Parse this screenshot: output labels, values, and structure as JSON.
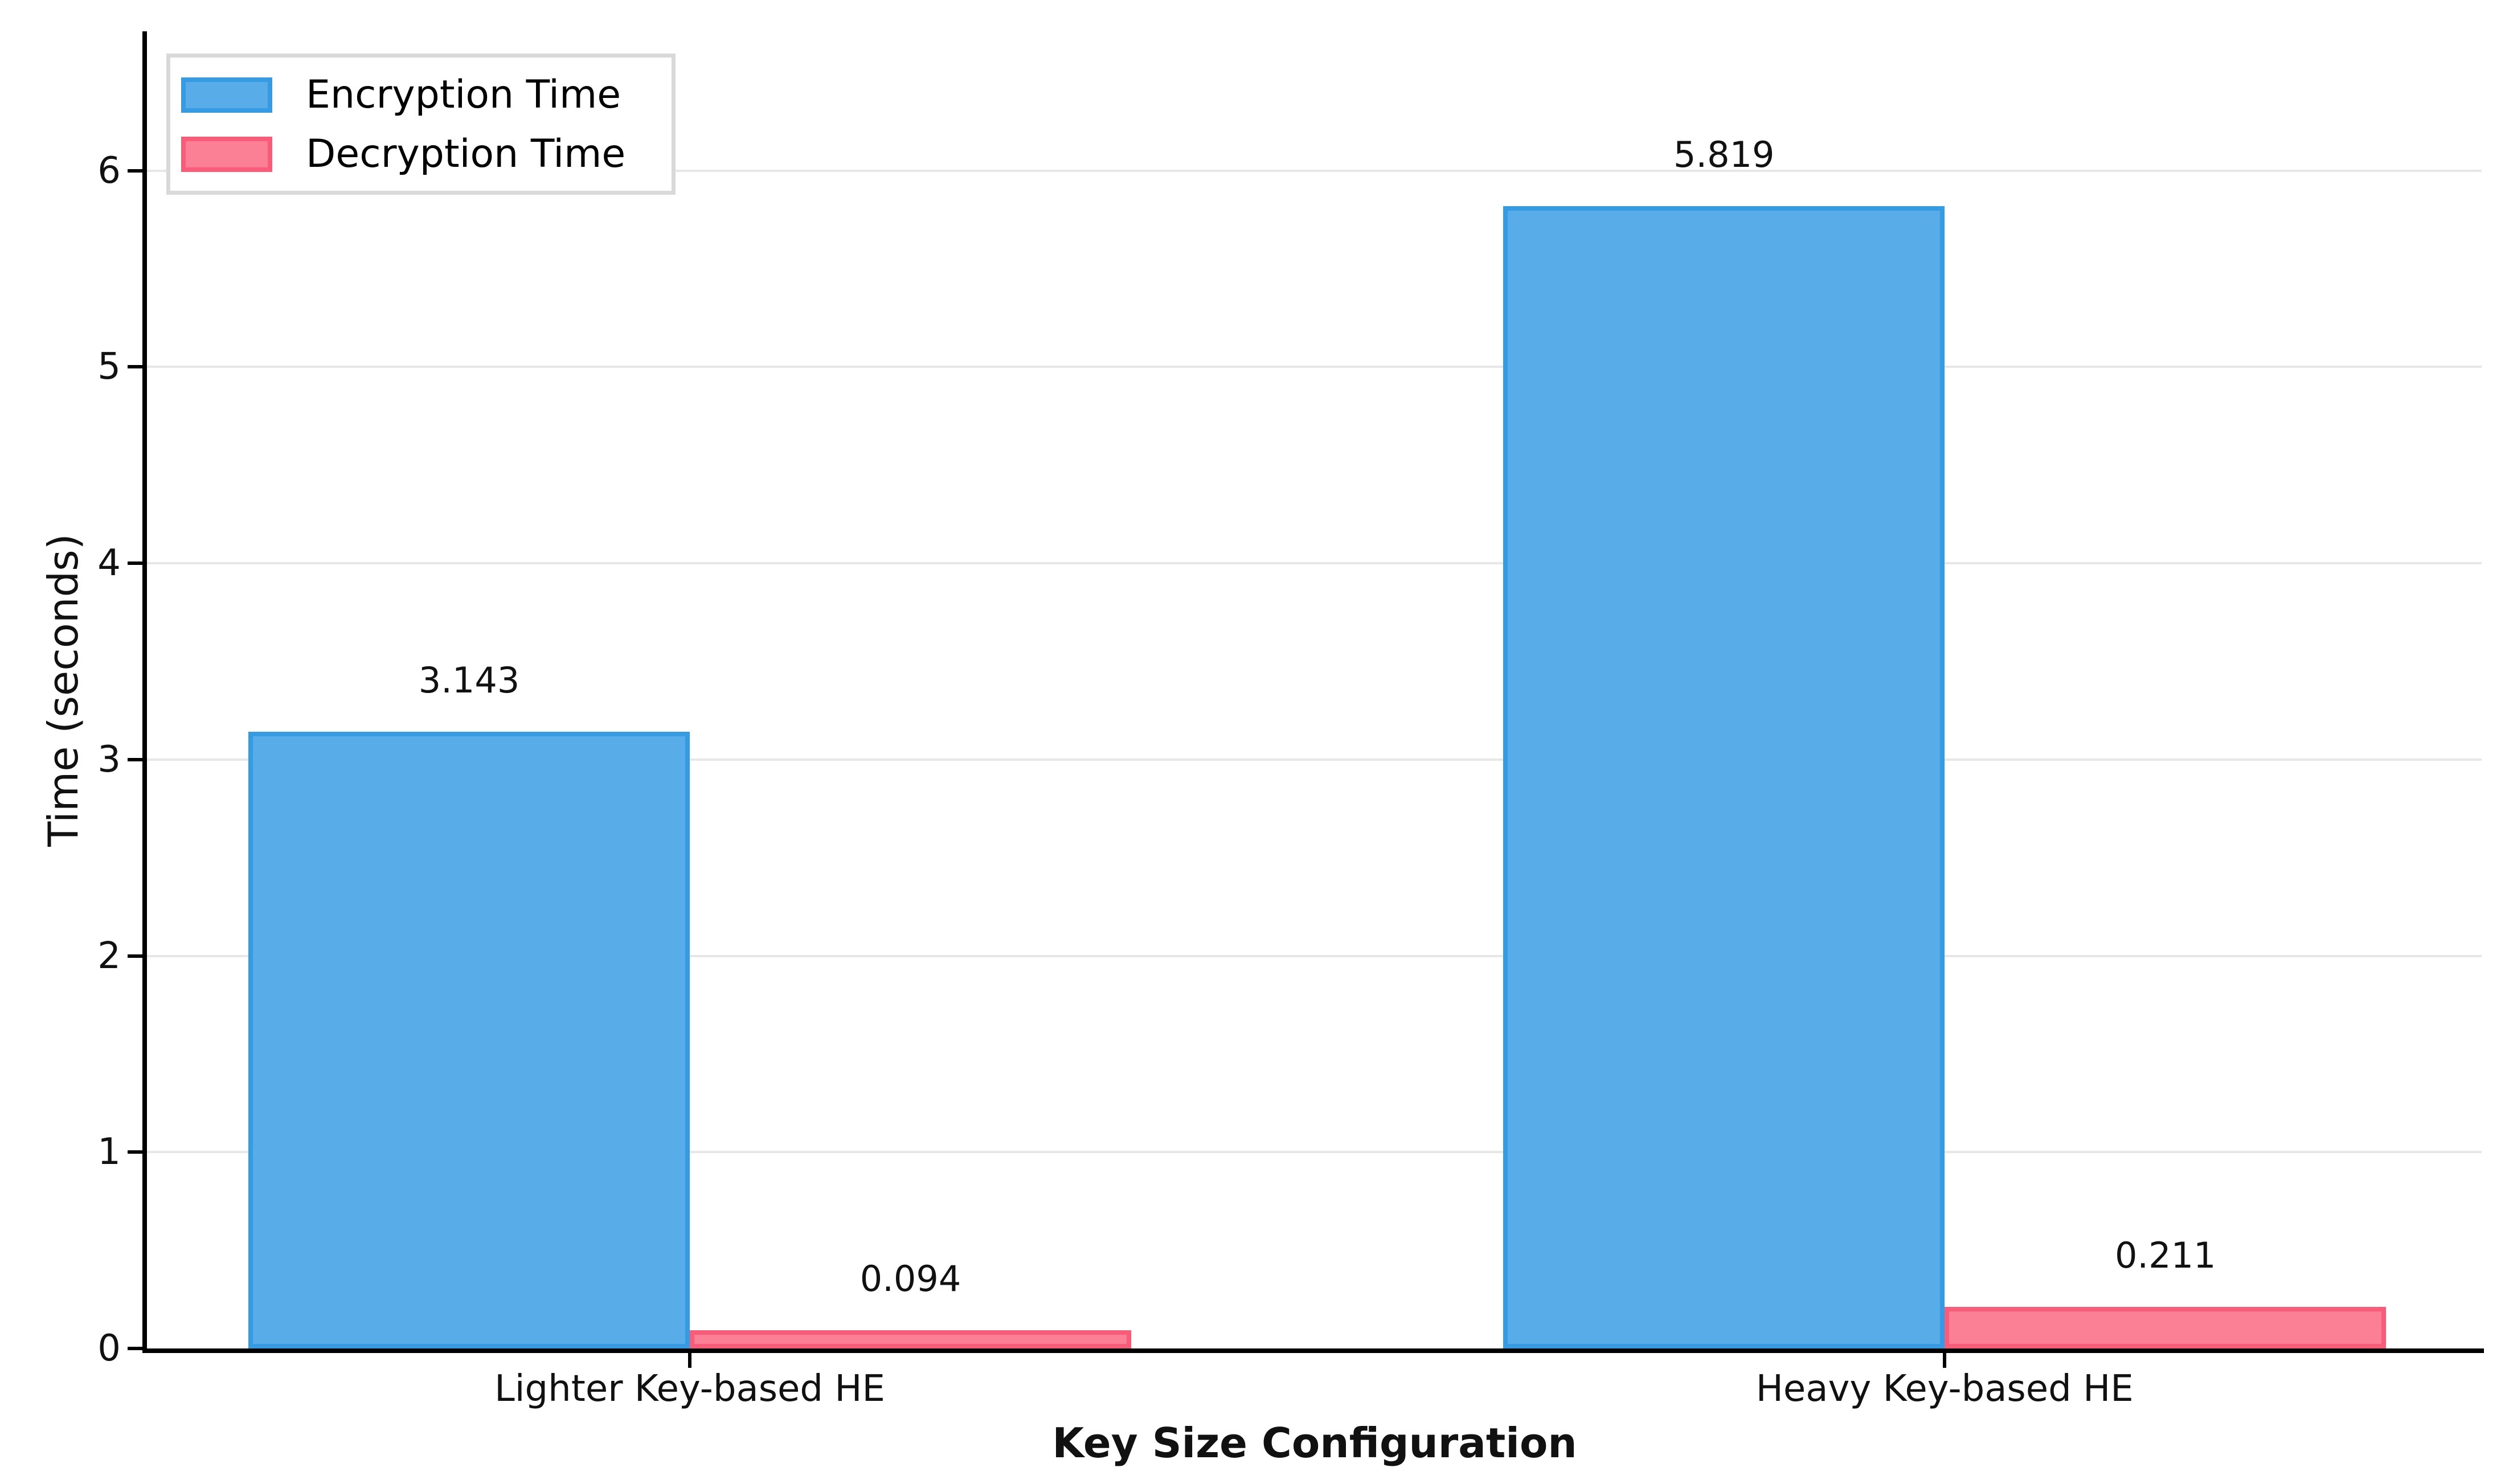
{
  "chart_data": {
    "type": "bar",
    "title": "",
    "xlabel": "Key Size Configuration",
    "ylabel": "Time (seconds)",
    "categories": [
      "Lighter Key-based HE",
      "Heavy Key-based HE"
    ],
    "series": [
      {
        "name": "Encryption Time",
        "values": [
          3.143,
          5.819
        ],
        "labels": [
          "3.143",
          "5.819"
        ],
        "fill_color": "#58ade9",
        "edge_color": "#359ce4"
      },
      {
        "name": "Decryption Time",
        "values": [
          0.094,
          0.211
        ],
        "labels": [
          "0.094",
          "0.211"
        ],
        "fill_color": "#fb8096",
        "edge_color": "#f85c78"
      }
    ],
    "yticks": [
      0,
      1,
      2,
      3,
      4,
      5,
      6
    ],
    "ylim": [
      0,
      6.71
    ],
    "grid": "horizontal",
    "legend": {
      "position": "upper-left"
    },
    "colors": {
      "grid": "#e7e7e7",
      "spine": "#000000",
      "text": "#111111",
      "legend_border": "#d9d9d9",
      "background": "#ffffff"
    }
  }
}
